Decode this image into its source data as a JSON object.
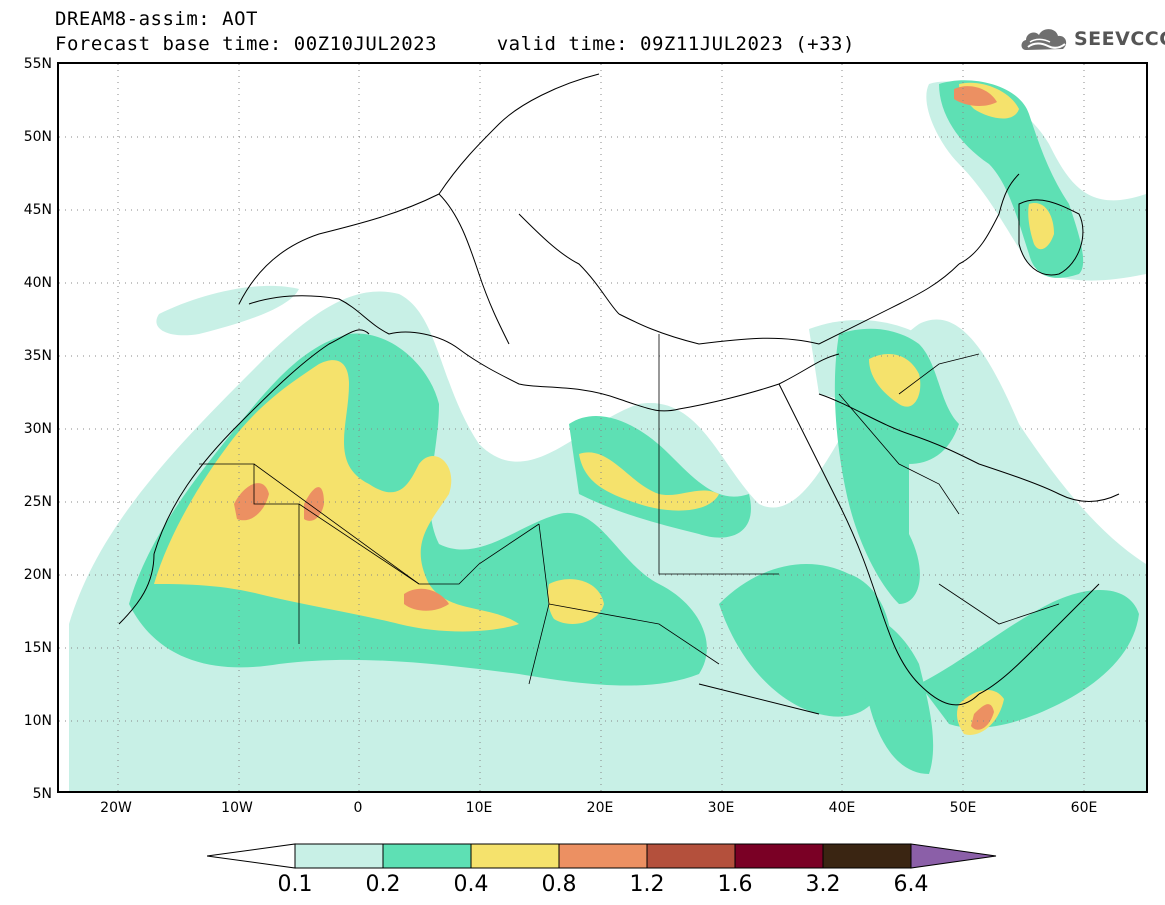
{
  "header": {
    "title_line1": "DREAM8-assim: AOT",
    "title_line2": "Forecast base time: 00Z10JUL2023     valid time: 09Z11JUL2023 (+33)"
  },
  "logo": {
    "text": "SEEVCCC",
    "icon": "cloud-logo-icon"
  },
  "map": {
    "region": "North Africa / Middle East / Europe",
    "lat_labels": [
      "55N",
      "50N",
      "45N",
      "40N",
      "35N",
      "30N",
      "25N",
      "20N",
      "15N",
      "10N",
      "5N"
    ],
    "lon_labels": [
      "20W",
      "10W",
      "0",
      "10E",
      "20E",
      "30E",
      "40E",
      "50E",
      "60E"
    ],
    "variable": "AOT"
  },
  "colorbar": {
    "colors": [
      "#ffffff",
      "#c8f0e6",
      "#5ee0b4",
      "#f5e26c",
      "#ec9062",
      "#b4503c",
      "#7a0025",
      "#3a2512",
      "#8b5fa8"
    ],
    "labels": [
      "0.1",
      "0.2",
      "0.4",
      "0.8",
      "1.2",
      "1.6",
      "3.2",
      "6.4"
    ]
  },
  "chart_data": {
    "type": "heatmap",
    "title": "DREAM8-assim: AOT",
    "subtitle": "Forecast base time: 00Z10JUL2023     valid time: 09Z11JUL2023 (+33)",
    "x_ticks": [
      "20W",
      "10W",
      "0",
      "10E",
      "20E",
      "30E",
      "40E",
      "50E",
      "60E"
    ],
    "y_ticks": [
      "55N",
      "50N",
      "45N",
      "40N",
      "35N",
      "30N",
      "25N",
      "20N",
      "15N",
      "10N",
      "5N"
    ],
    "xlim": [
      -25,
      65
    ],
    "ylim": [
      5,
      55
    ],
    "levels": [
      0.1,
      0.2,
      0.4,
      0.8,
      1.2,
      1.6,
      3.2,
      6.4
    ],
    "grid": true
  }
}
